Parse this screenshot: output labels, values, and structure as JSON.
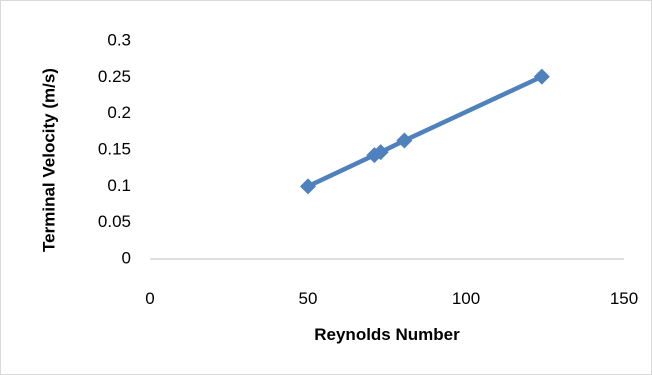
{
  "chart_data": {
    "type": "scatter",
    "title": "",
    "xlabel": "Reynolds Number",
    "ylabel": "Terminal Velocity (m/s)",
    "xlim": [
      0,
      150
    ],
    "ylim": [
      0,
      0.3
    ],
    "x_ticks": [
      "0",
      "50",
      "100",
      "150"
    ],
    "y_ticks": [
      "0",
      "0.05",
      "0.1",
      "0.15",
      "0.2",
      "0.25",
      "0.3"
    ],
    "grid": false,
    "legend": "none",
    "connected": true,
    "series": [
      {
        "x": [
          50.0,
          71.0,
          73.0,
          80.5,
          124.0
        ],
        "y": [
          0.1,
          0.143,
          0.147,
          0.163,
          0.251
        ],
        "color": "#4f81bd"
      }
    ]
  }
}
